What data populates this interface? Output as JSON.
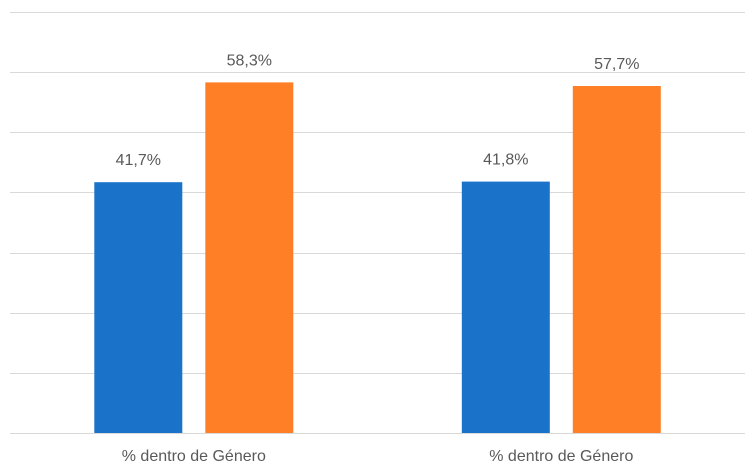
{
  "chart_data": {
    "type": "bar",
    "categories": [
      "% dentro de Género",
      "% dentro de Género"
    ],
    "series": [
      {
        "values": [
          41.7,
          41.8
        ],
        "color": "#1a73c9"
      },
      {
        "values": [
          58.3,
          57.7
        ],
        "color": "#ff7f27"
      }
    ],
    "data_labels": [
      [
        "41,7%",
        "41,8%"
      ],
      [
        "58,3%",
        "57,7%"
      ]
    ],
    "ylim": [
      0,
      70
    ],
    "grid": true,
    "gridline_color": "#d9d9d9",
    "label_color": "#595959"
  }
}
